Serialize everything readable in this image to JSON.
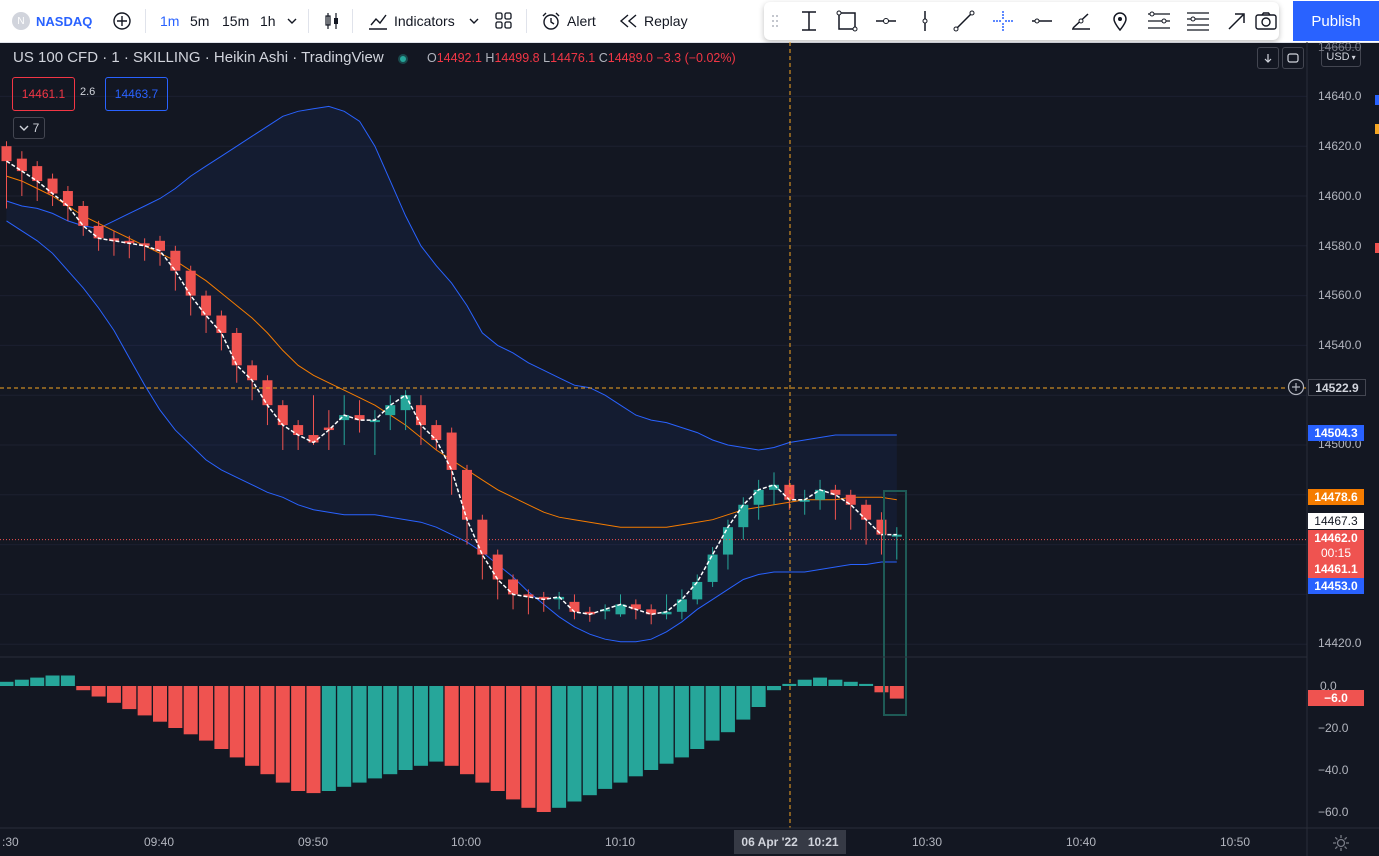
{
  "toolbar": {
    "symbol": "NASDAQ",
    "symbol_initial": "N",
    "timeframes": [
      "1m",
      "5m",
      "15m",
      "1h"
    ],
    "active_timeframe": "1m",
    "indicators_label": "Indicators",
    "alert_label": "Alert",
    "replay_label": "Replay",
    "publish_label": "Publish"
  },
  "drawing_tools": [
    "drag-handle-icon",
    "cross-line-icon",
    "rectangle-icon",
    "horizontal-ray-icon",
    "vertical-line-icon",
    "trend-line-icon",
    "crosshair-icon",
    "horizontal-line-icon",
    "trend-angle-icon",
    "pin-icon",
    "pitchfork-icon",
    "fib-retracement-icon",
    "arrow-icon",
    "camera-icon"
  ],
  "legend": {
    "title": "US 100 CFD · 1 · SKILLING · Heikin Ashi · TradingView",
    "o_label": "O",
    "o": "14492.1",
    "h_label": "H",
    "h": "14499.8",
    "l_label": "L",
    "l": "14476.1",
    "c_label": "C",
    "c": "14489.0",
    "change": "−3.3 (−0.02%)",
    "sell": "14461.1",
    "spread": "2.6",
    "buy": "14463.7",
    "indicator_count": "7"
  },
  "price_axis": {
    "currency": "USD",
    "ticks": [
      "14660.0",
      "14640.0",
      "14620.0",
      "14600.0",
      "14580.0",
      "14560.0",
      "14540.0",
      "14500.0",
      "14420.0"
    ],
    "osc_ticks": [
      "0.0",
      "−20.0",
      "−40.0",
      "−60.0"
    ],
    "labels": {
      "crosshair": "14522.9",
      "upper_band": "14504.3",
      "basis": "14478.6",
      "last_close": "14467.3",
      "bid": "14462.0",
      "countdown": "00:15",
      "ask": "14461.1",
      "lower_band": "14453.0",
      "osc_value": "−6.0"
    }
  },
  "time_axis": {
    "ticks": [
      ":30",
      "09:40",
      "09:50",
      "10:00",
      "10:10",
      "10:20",
      "10:30",
      "10:40",
      "10:50"
    ],
    "crosshair_label": "06 Apr '22   10:21"
  },
  "colors": {
    "up": "#26a69a",
    "down": "#ef5350",
    "band": "#2962ff",
    "basis": "#f57c00",
    "crosshair": "#f5a623",
    "background": "#131722"
  },
  "chart_data": {
    "type": "candlestick",
    "ylim": [
      14410,
      14665
    ],
    "x": [
      "09:31",
      "09:32",
      "09:33",
      "09:34",
      "09:35",
      "09:36",
      "09:37",
      "09:38",
      "09:39",
      "09:40",
      "09:41",
      "09:42",
      "09:43",
      "09:44",
      "09:45",
      "09:46",
      "09:47",
      "09:48",
      "09:49",
      "09:50",
      "09:51",
      "09:52",
      "09:53",
      "09:54",
      "09:55",
      "09:56",
      "09:57",
      "09:58",
      "09:59",
      "10:00",
      "10:01",
      "10:02",
      "10:03",
      "10:04",
      "10:05",
      "10:06",
      "10:07",
      "10:08",
      "10:09",
      "10:10",
      "10:11",
      "10:12",
      "10:13",
      "10:14",
      "10:15",
      "10:16",
      "10:17",
      "10:18",
      "10:19",
      "10:20",
      "10:21",
      "10:22",
      "10:23",
      "10:24",
      "10:25",
      "10:26",
      "10:27",
      "10:28",
      "10:29"
    ],
    "open": [
      14620,
      14615,
      14612,
      14607,
      14602,
      14596,
      14588,
      14583,
      14582,
      14581,
      14582,
      14578,
      14570,
      14560,
      14552,
      14545,
      14532,
      14526,
      14516,
      14508,
      14504,
      14507,
      14510,
      14512,
      14510,
      14512,
      14514,
      14516,
      14508,
      14505,
      14490,
      14470,
      14456,
      14446,
      14440,
      14439,
      14438,
      14437,
      14433,
      14434,
      14432,
      14436,
      14434,
      14432,
      14433,
      14438,
      14445,
      14456,
      14467,
      14476,
      14482,
      14484,
      14478,
      14478,
      14482,
      14480,
      14476,
      14470,
      14464
    ],
    "close": [
      14614,
      14610,
      14606,
      14601,
      14596,
      14588,
      14583,
      14582,
      14581,
      14580,
      14578,
      14570,
      14560,
      14552,
      14545,
      14532,
      14526,
      14516,
      14508,
      14504,
      14501,
      14506,
      14512,
      14510,
      14510,
      14516,
      14520,
      14508,
      14502,
      14490,
      14470,
      14456,
      14446,
      14440,
      14439,
      14438,
      14439,
      14433,
      14432,
      14434,
      14436,
      14434,
      14432,
      14433,
      14438,
      14445,
      14456,
      14467,
      14476,
      14482,
      14484,
      14478,
      14478,
      14482,
      14480,
      14476,
      14470,
      14464,
      14464
    ],
    "high": [
      14622,
      14618,
      14614,
      14609,
      14604,
      14598,
      14590,
      14586,
      14584,
      14583,
      14584,
      14580,
      14572,
      14562,
      14554,
      14547,
      14534,
      14528,
      14518,
      14510,
      14520,
      14514,
      14520,
      14518,
      14514,
      14520,
      14522,
      14520,
      14510,
      14507,
      14492,
      14472,
      14458,
      14448,
      14442,
      14441,
      14441,
      14440,
      14435,
      14436,
      14440,
      14438,
      14436,
      14440,
      14442,
      14448,
      14459,
      14470,
      14479,
      14486,
      14489,
      14486,
      14482,
      14486,
      14484,
      14482,
      14478,
      14473,
      14467
    ],
    "low": [
      14595,
      14600,
      14598,
      14596,
      14590,
      14584,
      14578,
      14576,
      14575,
      14574,
      14572,
      14562,
      14552,
      14545,
      14538,
      14525,
      14518,
      14508,
      14498,
      14498,
      14500,
      14498,
      14500,
      14505,
      14496,
      14506,
      14506,
      14500,
      14498,
      14480,
      14460,
      14446,
      14438,
      14434,
      14432,
      14433,
      14434,
      14430,
      14429,
      14430,
      14431,
      14430,
      14428,
      14430,
      14430,
      14436,
      14443,
      14450,
      14462,
      14470,
      14476,
      14474,
      14472,
      14474,
      14470,
      14466,
      14460,
      14456,
      14454
    ],
    "upper_band": [
      14598,
      14596,
      14595,
      14593,
      14590,
      14588,
      14587,
      14590,
      14593,
      14596,
      14599,
      14603,
      14608,
      14612,
      14616,
      14620,
      14624,
      14628,
      14632,
      14634,
      14635,
      14636,
      14634,
      14630,
      14620,
      14606,
      14592,
      14580,
      14572,
      14565,
      14556,
      14545,
      14540,
      14537,
      14533,
      14530,
      14527,
      14524,
      14523,
      14520,
      14516,
      14512,
      14510,
      14509,
      14507,
      14505,
      14502,
      14500,
      14499,
      14498,
      14499,
      14501,
      14502,
      14503,
      14504,
      14504,
      14504,
      14504,
      14504
    ],
    "basis": [
      14608,
      14606,
      14603,
      14600,
      14596,
      14592,
      14589,
      14586,
      14583,
      14580,
      14577,
      14574,
      14570,
      14566,
      14561,
      14556,
      14551,
      14545,
      14538,
      14532,
      14528,
      14525,
      14522,
      14519,
      14516,
      14512,
      14508,
      14503,
      14498,
      14494,
      14490,
      14486,
      14482,
      14479,
      14476,
      14473,
      14471,
      14470,
      14469,
      14468,
      14467,
      14467,
      14467,
      14467,
      14468,
      14469,
      14470,
      14472,
      14474,
      14475,
      14476,
      14477,
      14478,
      14478,
      14478,
      14479,
      14479,
      14479,
      14478
    ],
    "lower_band": [
      14590,
      14586,
      14582,
      14577,
      14570,
      14563,
      14555,
      14546,
      14535,
      14524,
      14514,
      14506,
      14500,
      14494,
      14490,
      14487,
      14484,
      14481,
      14479,
      14476,
      14474,
      14473,
      14472,
      14472,
      14472,
      14471,
      14470,
      14469,
      14467,
      14464,
      14461,
      14457,
      14452,
      14447,
      14441,
      14436,
      14431,
      14427,
      14424,
      14422,
      14421,
      14421,
      14422,
      14425,
      14429,
      14434,
      14438,
      14442,
      14446,
      14448,
      14449,
      14449,
      14449,
      14450,
      14451,
      14452,
      14452,
      14453,
      14453
    ],
    "oscillator": {
      "type": "bar",
      "ylim": [
        -66,
        6
      ],
      "values": [
        2,
        3,
        4,
        5,
        5,
        -2,
        -5,
        -8,
        -11,
        -14,
        -17,
        -20,
        -23,
        -26,
        -30,
        -34,
        -38,
        -42,
        -46,
        -50,
        -51,
        -50,
        -48,
        -46,
        -44,
        -42,
        -40,
        -38,
        -36,
        -38,
        -42,
        -46,
        -50,
        -54,
        -58,
        -60,
        -58,
        -55,
        -52,
        -49,
        -46,
        -43,
        -40,
        -37,
        -34,
        -30,
        -26,
        -22,
        -16,
        -10,
        -2,
        1,
        3,
        4,
        3,
        2,
        1,
        -3,
        -6
      ]
    }
  }
}
